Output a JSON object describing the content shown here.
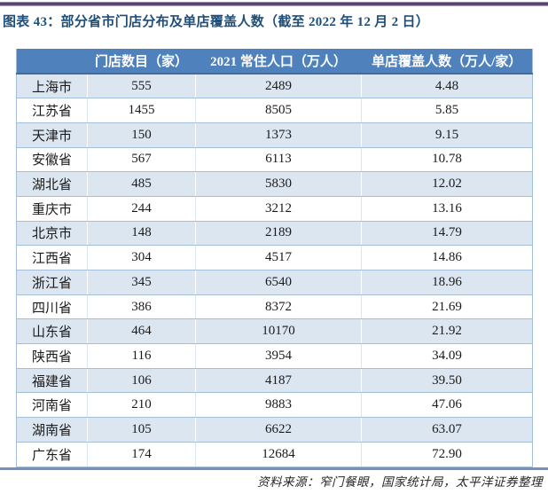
{
  "title": "图表 43：部分省市门店分布及单店覆盖人数（截至 2022 年 12 月 2 日）",
  "source_note": "资料来源：窄门餐眼，国家统计局，太平洋证券整理",
  "colors": {
    "header_bg": "#4F81BD",
    "header_text": "#FFFFFF",
    "band_row_bg": "#DCE6F1",
    "plain_row_bg": "#FFFFFF",
    "grid_line": "#A4BDD8",
    "header_rule": "#3E6CA0",
    "title_text": "#1F4E79",
    "top_rule": "#55426E",
    "bottom_rule": "#7590BE"
  },
  "chart_data": {
    "type": "table",
    "figure_label": "图表 43",
    "title": "部分省市门店分布及单店覆盖人数（截至 2022 年 12 月 2 日）",
    "columns": [
      "",
      "门店数目（家）",
      "2021 常住人口（万人）",
      "单店覆盖人数（万人/家）"
    ],
    "rows": [
      [
        "上海市",
        "555",
        "2489",
        "4.48"
      ],
      [
        "江苏省",
        "1455",
        "8505",
        "5.85"
      ],
      [
        "天津市",
        "150",
        "1373",
        "9.15"
      ],
      [
        "安徽省",
        "567",
        "6113",
        "10.78"
      ],
      [
        "湖北省",
        "485",
        "5830",
        "12.02"
      ],
      [
        "重庆市",
        "244",
        "3212",
        "13.16"
      ],
      [
        "北京市",
        "148",
        "2189",
        "14.79"
      ],
      [
        "江西省",
        "304",
        "4517",
        "14.86"
      ],
      [
        "浙江省",
        "345",
        "6540",
        "18.96"
      ],
      [
        "四川省",
        "386",
        "8372",
        "21.69"
      ],
      [
        "山东省",
        "464",
        "10170",
        "21.92"
      ],
      [
        "陕西省",
        "116",
        "3954",
        "34.09"
      ],
      [
        "福建省",
        "106",
        "4187",
        "39.50"
      ],
      [
        "河南省",
        "210",
        "9883",
        "47.06"
      ],
      [
        "湖南省",
        "105",
        "6622",
        "63.07"
      ],
      [
        "广东省",
        "174",
        "12684",
        "72.90"
      ]
    ]
  }
}
